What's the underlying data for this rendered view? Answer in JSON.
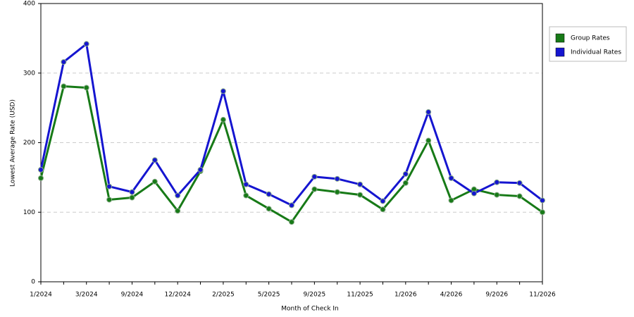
{
  "chart_data": {
    "type": "line",
    "x_label": "Month of Check In",
    "y_label": "Lowest Average Rate (USD)",
    "categories": [
      "1/2024",
      null,
      "3/2024",
      null,
      "9/2024",
      null,
      "12/2024",
      null,
      "2/2025",
      null,
      "5/2025",
      null,
      "9/2025",
      null,
      "11/2025",
      null,
      "1/2026",
      null,
      "4/2026",
      null,
      "9/2026",
      null,
      "11/2026"
    ],
    "series": [
      {
        "name": "Group Rates",
        "color": "#177a17",
        "values": [
          149,
          281,
          279,
          118,
          121,
          144,
          102,
          159,
          233,
          124,
          105,
          86,
          133,
          129,
          125,
          104,
          142,
          203,
          117,
          133,
          125,
          123,
          100
        ]
      },
      {
        "name": "Individual Rates",
        "color": "#1515d0",
        "values": [
          161,
          316,
          342,
          137,
          129,
          175,
          124,
          161,
          274,
          140,
          126,
          110,
          151,
          148,
          140,
          116,
          155,
          244,
          149,
          127,
          143,
          142,
          117
        ]
      }
    ],
    "ylim": [
      0,
      400
    ],
    "yticks": [
      0,
      100,
      200,
      300,
      400
    ],
    "grid": true,
    "legend": "right"
  }
}
